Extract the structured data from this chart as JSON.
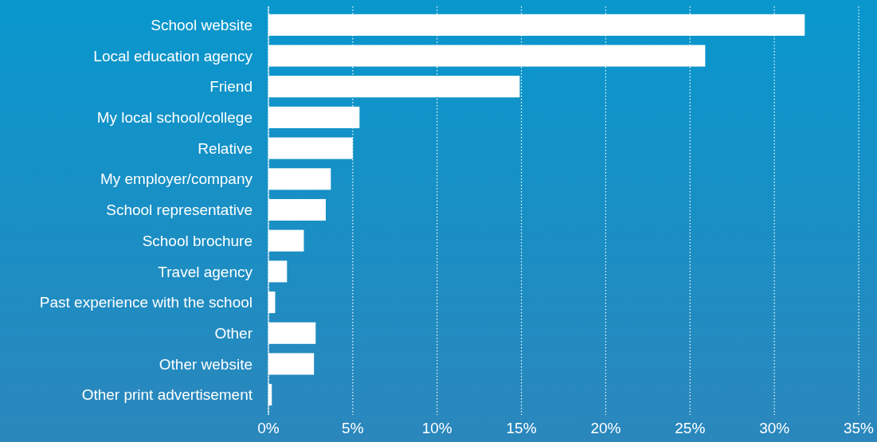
{
  "chart_data": {
    "type": "bar",
    "orientation": "horizontal",
    "categories": [
      "School website",
      "Local education agency",
      "Friend",
      "My local school/college",
      "Relative",
      "My employer/company",
      "School representative",
      "School brochure",
      "Travel agency",
      "Past experience with the school",
      "Other",
      "Other website",
      "Other print advertisement"
    ],
    "values": [
      31.8,
      25.9,
      14.9,
      5.4,
      5.0,
      3.7,
      3.4,
      2.1,
      1.1,
      0.4,
      2.8,
      2.7,
      0.2
    ],
    "color": "#ffffff",
    "xlim": [
      0,
      35
    ],
    "xticks": [
      {
        "value": 0,
        "label": "0%"
      },
      {
        "value": 5,
        "label": "5%"
      },
      {
        "value": 10,
        "label": "10%"
      },
      {
        "value": 15,
        "label": "15%"
      },
      {
        "value": 20,
        "label": "20%"
      },
      {
        "value": 25,
        "label": "25%"
      },
      {
        "value": 30,
        "label": "30%"
      },
      {
        "value": 35,
        "label": "35%"
      }
    ],
    "grid": "x"
  }
}
